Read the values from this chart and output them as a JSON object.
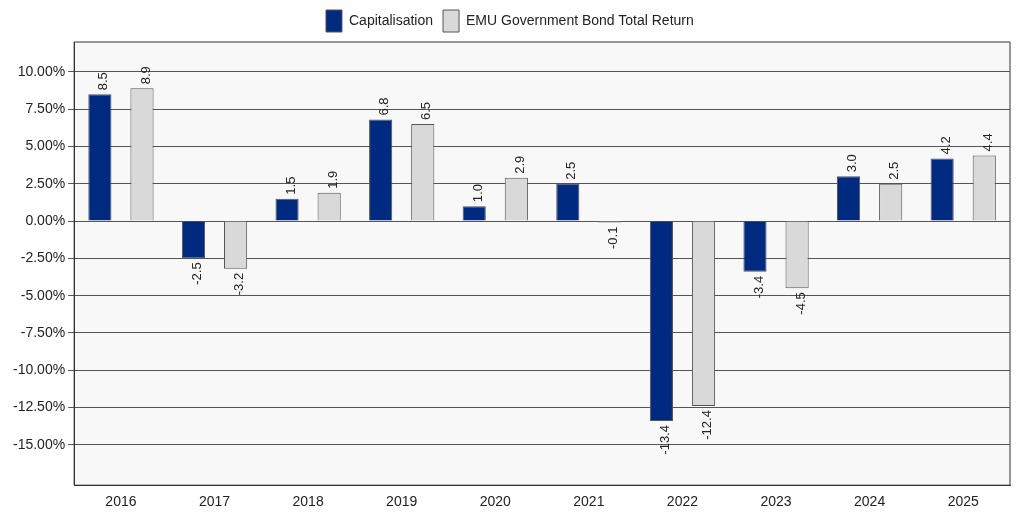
{
  "chart_data": {
    "type": "bar",
    "categories": [
      "2016",
      "2017",
      "2018",
      "2019",
      "2020",
      "2021",
      "2022",
      "2023",
      "2024",
      "2025"
    ],
    "series": [
      {
        "name": "Capitalisation",
        "color": "#002a7f",
        "values": [
          8.5,
          -2.5,
          1.5,
          6.8,
          1.0,
          2.5,
          -13.4,
          -3.4,
          3.0,
          4.2
        ],
        "value_labels": [
          "8.5",
          "-2.5",
          "1.5",
          "6.8",
          "1.0",
          "2.5",
          "-13.4",
          "-3.4",
          "3.0",
          "4.2"
        ]
      },
      {
        "name": "EMU Government Bond Total Return",
        "color": "#d9d9d9",
        "values": [
          8.9,
          -3.2,
          1.9,
          6.5,
          2.9,
          -0.1,
          -12.4,
          -4.5,
          2.5,
          4.4
        ],
        "value_labels": [
          "8.9",
          "-3.2",
          "1.9",
          "6.5",
          "2.9",
          "-0.1",
          "-12.4",
          "-4.5",
          "2.5",
          "4.4"
        ]
      }
    ],
    "ylim": [
      -17.7,
      12
    ],
    "yticks": [
      {
        "value": -15,
        "label": "-15.00%"
      },
      {
        "value": -12.5,
        "label": "-12.50%"
      },
      {
        "value": -10,
        "label": "-10.00%"
      },
      {
        "value": -7.5,
        "label": "-7.50%"
      },
      {
        "value": -5,
        "label": "-5.00%"
      },
      {
        "value": -2.5,
        "label": "-2.50%"
      },
      {
        "value": 0,
        "label": "0.00%"
      },
      {
        "value": 2.5,
        "label": "2.50%"
      },
      {
        "value": 5,
        "label": "5.00%"
      },
      {
        "value": 7.5,
        "label": "7.50%"
      },
      {
        "value": 10,
        "label": "10.00%"
      }
    ],
    "grid": "y",
    "legend": "top"
  }
}
